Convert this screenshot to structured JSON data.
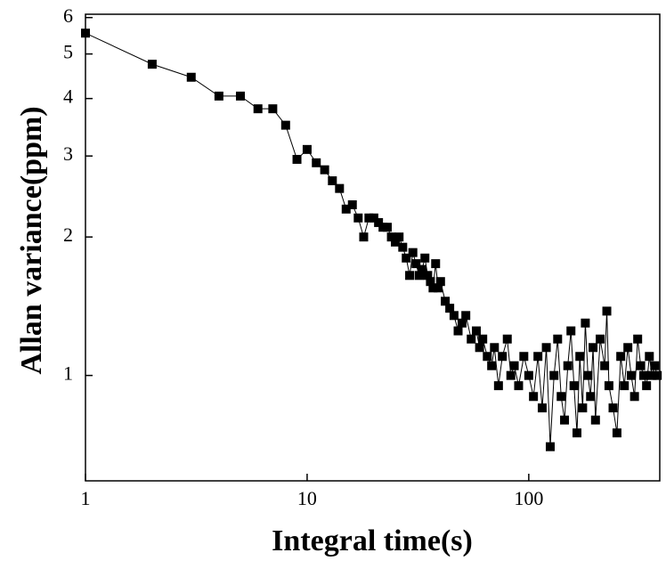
{
  "chart_data": {
    "type": "scatter-line",
    "xlabel": "Integral time(s)",
    "ylabel": "Allan variance(ppm)",
    "xscale": "log",
    "yscale": "log",
    "xlim": [
      1,
      390
    ],
    "ylim": [
      0.59,
      6.1
    ],
    "xticks": [
      1,
      10,
      100
    ],
    "yticks": [
      1,
      2,
      3,
      4,
      5,
      6
    ],
    "color": "#000000",
    "x": [
      1,
      2,
      3,
      4,
      5,
      6,
      7,
      8,
      9,
      10,
      11,
      12,
      13,
      14,
      15,
      16,
      17,
      18,
      19,
      20,
      21,
      22,
      23,
      24,
      25,
      26,
      27,
      28,
      29,
      30,
      31,
      32,
      33,
      34,
      35,
      36,
      37,
      38,
      39,
      40,
      42,
      44,
      46,
      48,
      50,
      52,
      55,
      58,
      60,
      62,
      65,
      68,
      70,
      73,
      76,
      80,
      83,
      86,
      90,
      95,
      100,
      105,
      110,
      115,
      120,
      125,
      130,
      135,
      140,
      145,
      150,
      155,
      160,
      165,
      170,
      175,
      180,
      185,
      190,
      195,
      200,
      210,
      220,
      225,
      230,
      240,
      250,
      260,
      270,
      280,
      290,
      300,
      310,
      320,
      330,
      340,
      350,
      360,
      370,
      380
    ],
    "values": [
      5.55,
      4.75,
      4.45,
      4.05,
      4.05,
      3.8,
      3.8,
      3.5,
      2.95,
      3.1,
      2.9,
      2.8,
      2.65,
      2.55,
      2.3,
      2.35,
      2.2,
      2.0,
      2.2,
      2.2,
      2.15,
      2.1,
      2.1,
      2.0,
      1.95,
      2.0,
      1.9,
      1.8,
      1.65,
      1.85,
      1.75,
      1.65,
      1.7,
      1.8,
      1.65,
      1.6,
      1.55,
      1.75,
      1.55,
      1.6,
      1.45,
      1.4,
      1.35,
      1.25,
      1.3,
      1.35,
      1.2,
      1.25,
      1.15,
      1.2,
      1.1,
      1.05,
      1.15,
      0.95,
      1.1,
      1.2,
      1.0,
      1.05,
      0.95,
      1.1,
      1.0,
      0.9,
      1.1,
      0.85,
      1.15,
      0.7,
      1.0,
      1.2,
      0.9,
      0.8,
      1.05,
      1.25,
      0.95,
      0.75,
      1.1,
      0.85,
      1.3,
      1.0,
      0.9,
      1.15,
      0.8,
      1.2,
      1.05,
      1.38,
      0.95,
      0.85,
      0.75,
      1.1,
      0.95,
      1.15,
      1.0,
      0.9,
      1.2,
      1.05,
      1.0,
      0.95,
      1.1,
      1.0,
      1.05,
      1.0
    ]
  }
}
